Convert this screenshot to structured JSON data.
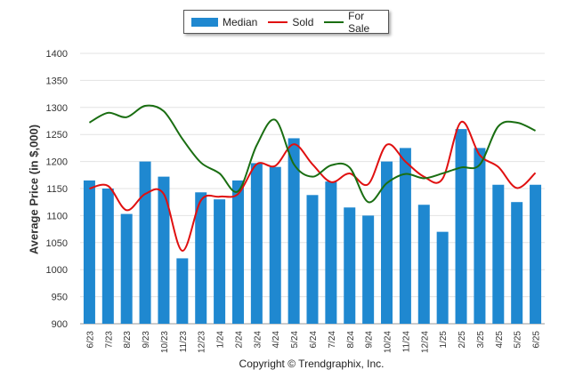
{
  "legend": {
    "median_label": "Median",
    "sold_label": "Sold",
    "forsale_label": "For Sale"
  },
  "copyright": "Copyright © Trendgraphix, Inc.",
  "colors": {
    "median": "#1f88d0",
    "sold": "#e01010",
    "forsale": "#1a6e12",
    "grid": "#e3e3e3"
  },
  "chart_data": {
    "type": "bar",
    "xlabel": "",
    "ylabel": "Average Price (in $,000)",
    "ylim": [
      900,
      1400
    ],
    "yticks": [
      900,
      950,
      1000,
      1050,
      1100,
      1150,
      1200,
      1250,
      1300,
      1350,
      1400
    ],
    "grid": true,
    "legend_position": "top-center",
    "categories": [
      "6/23",
      "7/23",
      "8/23",
      "9/23",
      "10/23",
      "11/23",
      "12/23",
      "1/24",
      "2/24",
      "3/24",
      "4/24",
      "5/24",
      "6/24",
      "7/24",
      "8/24",
      "9/24",
      "10/24",
      "11/24",
      "12/24",
      "1/25",
      "2/25",
      "3/25",
      "4/25",
      "5/25",
      "6/25"
    ],
    "series": [
      {
        "name": "Median",
        "kind": "bar",
        "values": [
          1165,
          1150,
          1103,
          1200,
          1172,
          1021,
          1143,
          1130,
          1165,
          1197,
          1190,
          1243,
          1138,
          1163,
          1115,
          1100,
          1200,
          1225,
          1120,
          1070,
          1260,
          1225,
          1157,
          1125,
          1157
        ]
      },
      {
        "name": "Sold",
        "kind": "line",
        "values": [
          1150,
          1155,
          1110,
          1140,
          1140,
          1035,
          1128,
          1135,
          1140,
          1195,
          1192,
          1232,
          1195,
          1162,
          1178,
          1158,
          1231,
          1200,
          1172,
          1168,
          1273,
          1212,
          1190,
          1151,
          1179
        ]
      },
      {
        "name": "For Sale",
        "kind": "line",
        "values": [
          1272,
          1290,
          1282,
          1303,
          1293,
          1242,
          1198,
          1178,
          1145,
          1230,
          1277,
          1195,
          1172,
          1193,
          1189,
          1125,
          1160,
          1177,
          1169,
          1178,
          1189,
          1194,
          1265,
          1272,
          1257
        ]
      }
    ]
  }
}
